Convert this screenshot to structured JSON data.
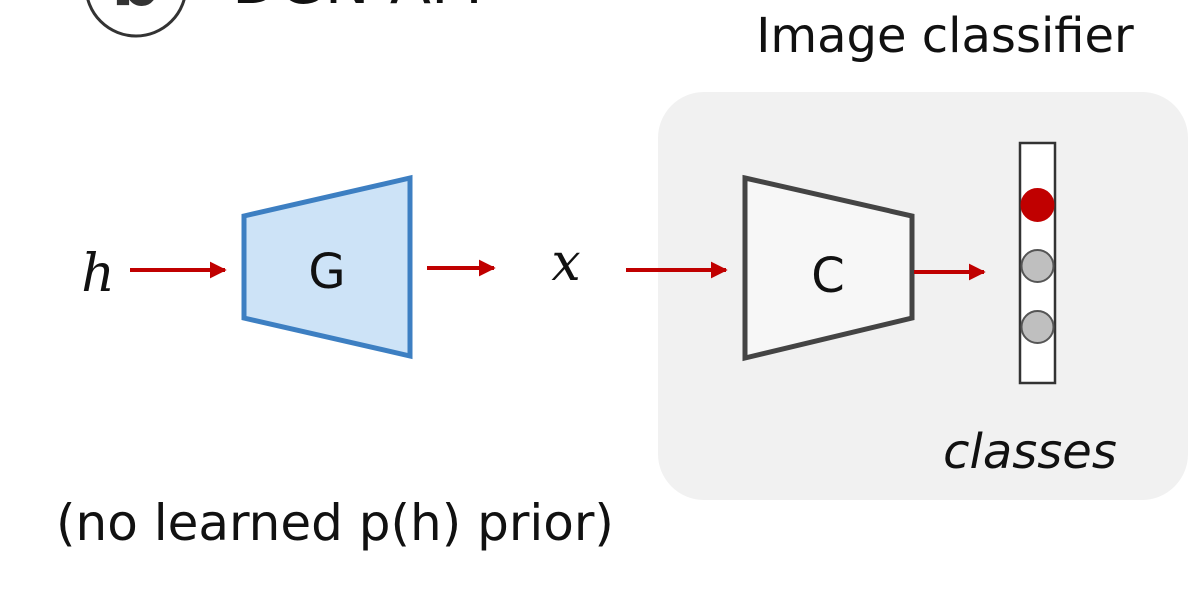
{
  "header": {
    "badge_letter": "b",
    "title": "DGN-AM",
    "classifier_title": "Image classifier"
  },
  "diagram": {
    "input_var": "h",
    "generator_label": "G",
    "image_var": "x",
    "classifier_label": "C",
    "output_label": "classes",
    "note": "(no learned p(h) prior)"
  },
  "colors": {
    "arrow": "#c00000",
    "generator_fill": "#cde3f7",
    "generator_stroke": "#3d7fc2",
    "classifier_stroke": "#444444",
    "panel_fill": "#f1f1f1",
    "active_unit": "#c00000",
    "inactive_unit": "#bfbfbf"
  },
  "output_units": [
    {
      "active": true
    },
    {
      "active": false
    },
    {
      "active": false
    }
  ]
}
